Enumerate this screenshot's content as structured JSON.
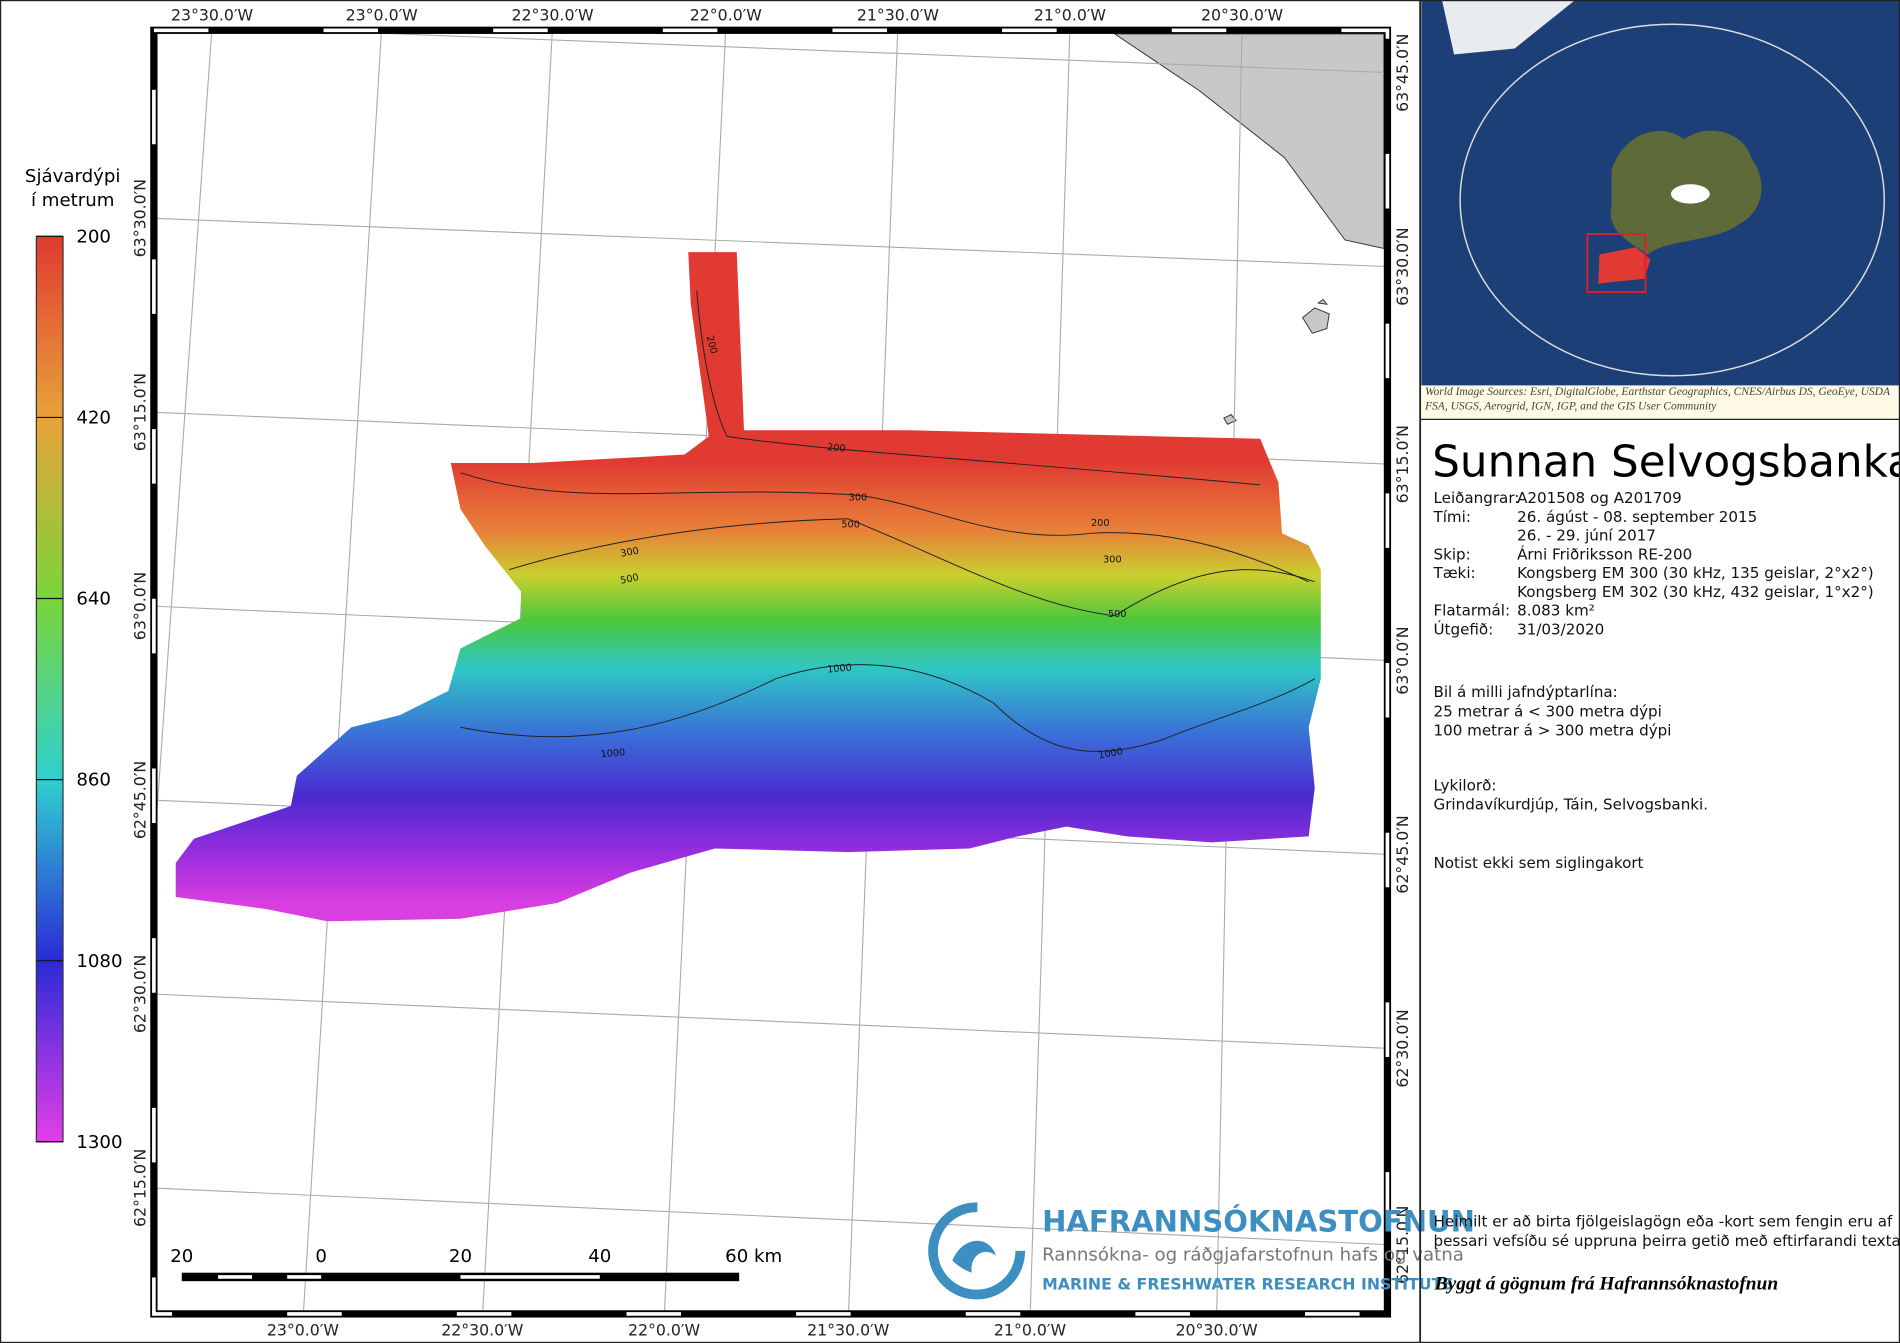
{
  "map": {
    "legend": {
      "title": [
        "Sjávardýpi",
        "í metrum"
      ],
      "ticks": [
        200,
        420,
        640,
        860,
        1080,
        1300
      ]
    },
    "longitude_labels_top": [
      "23°30.0′W",
      "23°0.0′W",
      "22°30.0′W",
      "22°0.0′W",
      "21°30.0′W",
      "21°0.0′W",
      "20°30.0′W"
    ],
    "longitude_labels_bottom": [
      "23°0.0′W",
      "22°30.0′W",
      "22°0.0′W",
      "21°30.0′W",
      "21°0.0′W",
      "20°30.0′W"
    ],
    "latitude_labels_left": [
      "63°30.0′N",
      "63°15.0′N",
      "63°0.0′N",
      "62°45.0′N",
      "62°30.0′N",
      "62°15.0′N"
    ],
    "latitude_labels_right": [
      "63°45.0′N",
      "63°30.0′N",
      "63°15.0′N",
      "63°0.0′N",
      "62°45.0′N",
      "62°30.0′N",
      "62°15.0′N"
    ],
    "contour_labels": [
      "200",
      "200",
      "300",
      "500",
      "300",
      "500",
      "200",
      "300",
      "500",
      "1000",
      "1000",
      "1000"
    ],
    "scale_bar": [
      "20",
      "0",
      "20",
      "40",
      "60 km"
    ]
  },
  "inset": {
    "source": "World Image Sources: Esri, DigitalGlobe, Earthstar Geographics, CNES/Airbus DS, GeoEye, USDA FSA, USGS, Aerogrid, IGN, IGP, and the GIS User Community"
  },
  "info": {
    "title": "Sunnan Selvogsbanka",
    "rows": [
      {
        "label": "Leiðangrar:",
        "value": [
          "A201508 og A201709"
        ]
      },
      {
        "label": "Tími:",
        "value": [
          "26. ágúst - 08. september 2015",
          "26. - 29. júní 2017"
        ]
      },
      {
        "label": "Skip:",
        "value": [
          "Árni Friðriksson RE-200"
        ]
      },
      {
        "label": "Tæki:",
        "value": [
          "Kongsberg EM 300 (30 kHz, 135 geislar, 2°x2°)",
          "Kongsberg EM 302 (30 kHz, 432 geislar, 1°x2°)"
        ]
      },
      {
        "label": "Flatarmál:",
        "value": [
          "8.083 km²"
        ]
      },
      {
        "label": "Útgefið:",
        "value": [
          "31/03/2020"
        ]
      }
    ],
    "contour_note": [
      "Bil á milli jafndýptarlína:",
      "25 metrar á < 300 metra dýpi",
      "100 metrar á > 300 metra dýpi"
    ],
    "keywords": [
      "Lykilorð:",
      "Grindavíkurdjúp, Táin, Selvogsbanki."
    ],
    "warning": "Notist ekki sem siglingakort",
    "permission": [
      "Heimilt er að birta fjölgeislagögn eða -kort sem fengin eru af",
      "þessari vefsíðu sé uppruna þeirra getið með eftirfarandi texta:"
    ],
    "credit": "Byggt á gögnum frá Hafrannsóknastofnun"
  },
  "logo": {
    "name": "HAFRANNSÓKNASTOFNUN",
    "subtitle": "Rannsókna- og ráðgjafarstofnun hafs og vatna",
    "english": "MARINE & FRESHWATER RESEARCH INSTITUTE"
  }
}
